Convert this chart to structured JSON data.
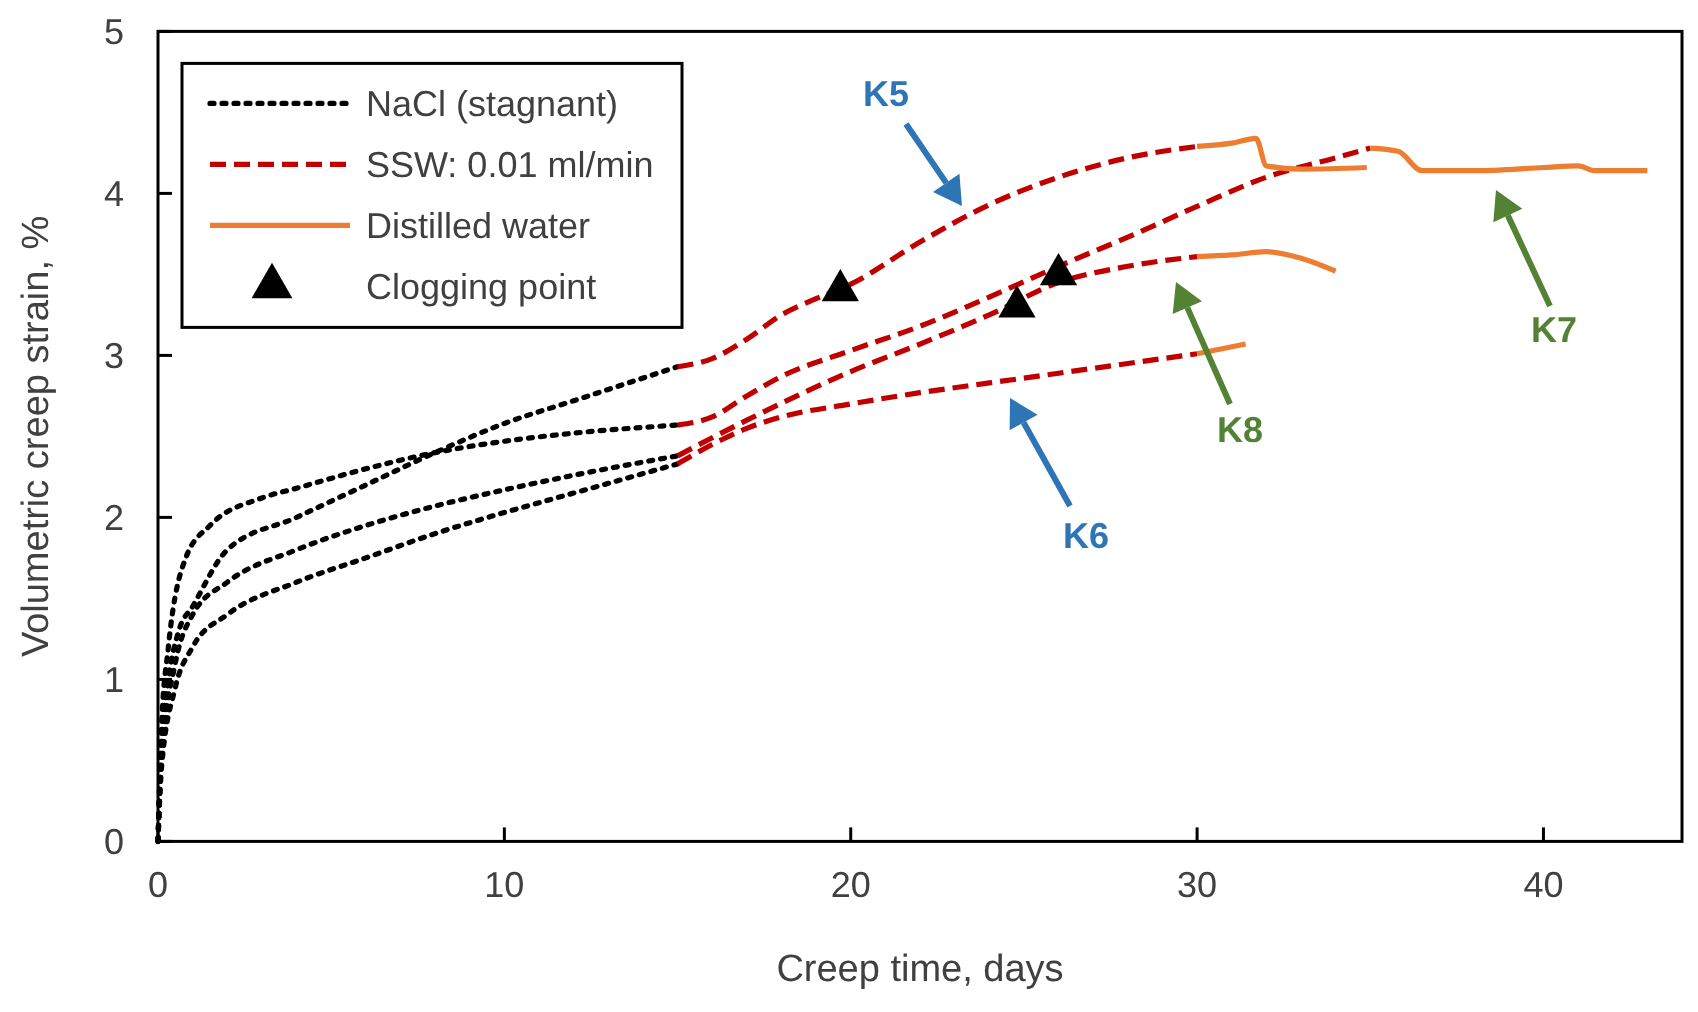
{
  "chart_data": {
    "type": "line",
    "xlabel": "Creep time, days",
    "ylabel": "Volumetric creep strain, %",
    "xlim": [
      0,
      44
    ],
    "xticks": [
      0,
      10,
      20,
      30,
      40
    ],
    "ylim": [
      0,
      5
    ],
    "yticks": [
      0,
      1,
      2,
      3,
      4,
      5
    ],
    "grid": false,
    "legend": "top left",
    "series": [
      {
        "name": "NaCl (stagnant)",
        "color": "#000000",
        "line_style": "dotted",
        "x": [
          0,
          0.1,
          0.3,
          0.6,
          1,
          2,
          4,
          6,
          8,
          10,
          12,
          15
        ],
        "values": [
          0,
          0.6,
          1.0,
          1.3,
          1.45,
          1.8,
          2.0,
          2.2,
          2.4,
          2.58,
          2.72,
          2.93
        ]
      },
      {
        "color": "#000000",
        "line_style": "dotted",
        "x": [
          0,
          0.1,
          0.3,
          0.8,
          1.5,
          3,
          4,
          6,
          8,
          10,
          12,
          15
        ],
        "values": [
          0,
          0.7,
          1.2,
          1.75,
          1.95,
          2.12,
          2.18,
          2.3,
          2.4,
          2.47,
          2.52,
          2.57
        ]
      },
      {
        "color": "#000000",
        "line_style": "dotted",
        "x": [
          0,
          0.1,
          0.5,
          1,
          2,
          4,
          6,
          8,
          10,
          12,
          15
        ],
        "values": [
          0,
          0.5,
          1.1,
          1.4,
          1.6,
          1.8,
          1.95,
          2.07,
          2.17,
          2.26,
          2.38
        ]
      },
      {
        "color": "#000000",
        "line_style": "dotted",
        "x": [
          0,
          0.1,
          0.5,
          1,
          2,
          4,
          6,
          8,
          10,
          12,
          15
        ],
        "values": [
          0,
          0.45,
          0.95,
          1.2,
          1.4,
          1.6,
          1.75,
          1.9,
          2.03,
          2.15,
          2.33
        ]
      },
      {
        "name": "SSW: 0.01 ml/min",
        "color": "#c00000",
        "line_style": "dashed",
        "x": [
          15,
          16,
          17,
          18,
          19,
          20,
          22,
          24,
          26,
          28,
          30
        ],
        "values": [
          2.93,
          2.98,
          3.1,
          3.25,
          3.35,
          3.44,
          3.7,
          3.93,
          4.1,
          4.22,
          4.29
        ]
      },
      {
        "color": "#c00000",
        "line_style": "dashed",
        "x": [
          15,
          16,
          17,
          18,
          20,
          22,
          24,
          26,
          28,
          30,
          32,
          34,
          35
        ],
        "values": [
          2.57,
          2.62,
          2.75,
          2.87,
          3.03,
          3.18,
          3.36,
          3.55,
          3.73,
          3.92,
          4.1,
          4.22,
          4.28
        ]
      },
      {
        "color": "#c00000",
        "line_style": "dashed",
        "x": [
          15,
          17,
          20,
          22,
          24,
          26,
          28,
          30
        ],
        "values": [
          2.38,
          2.6,
          2.9,
          3.07,
          3.25,
          3.45,
          3.55,
          3.61
        ]
      },
      {
        "color": "#c00000",
        "line_style": "dashed",
        "x": [
          15,
          16,
          17,
          18,
          20,
          22,
          24,
          26,
          28,
          30
        ],
        "values": [
          2.33,
          2.45,
          2.55,
          2.62,
          2.7,
          2.77,
          2.83,
          2.89,
          2.95,
          3.01
        ]
      },
      {
        "name": "Distilled water",
        "color": "#ed7d31",
        "line_style": "solid",
        "x": [
          30,
          31,
          31.7,
          32,
          33,
          34.9
        ],
        "values": [
          4.29,
          4.31,
          4.34,
          4.17,
          4.15,
          4.16
        ]
      },
      {
        "color": "#ed7d31",
        "line_style": "solid",
        "x": [
          35,
          35.8,
          36.5,
          38,
          40,
          41,
          41.5,
          43
        ],
        "values": [
          4.28,
          4.26,
          4.14,
          4.14,
          4.16,
          4.17,
          4.14,
          4.14
        ]
      },
      {
        "color": "#ed7d31",
        "line_style": "solid",
        "x": [
          30,
          31,
          32,
          33,
          34
        ],
        "values": [
          3.61,
          3.62,
          3.64,
          3.6,
          3.52
        ]
      },
      {
        "color": "#ed7d31",
        "line_style": "solid",
        "x": [
          30,
          31.4
        ],
        "values": [
          3.01,
          3.07
        ]
      },
      {
        "name": "Clogging point",
        "type": "scatter",
        "marker": "triangle",
        "color": "#000000",
        "x": [
          19.7,
          24.8,
          26.0
        ],
        "values": [
          3.4,
          3.3,
          3.5
        ]
      }
    ],
    "annotations": [
      "K5",
      "K6",
      "K8",
      "K7"
    ]
  }
}
